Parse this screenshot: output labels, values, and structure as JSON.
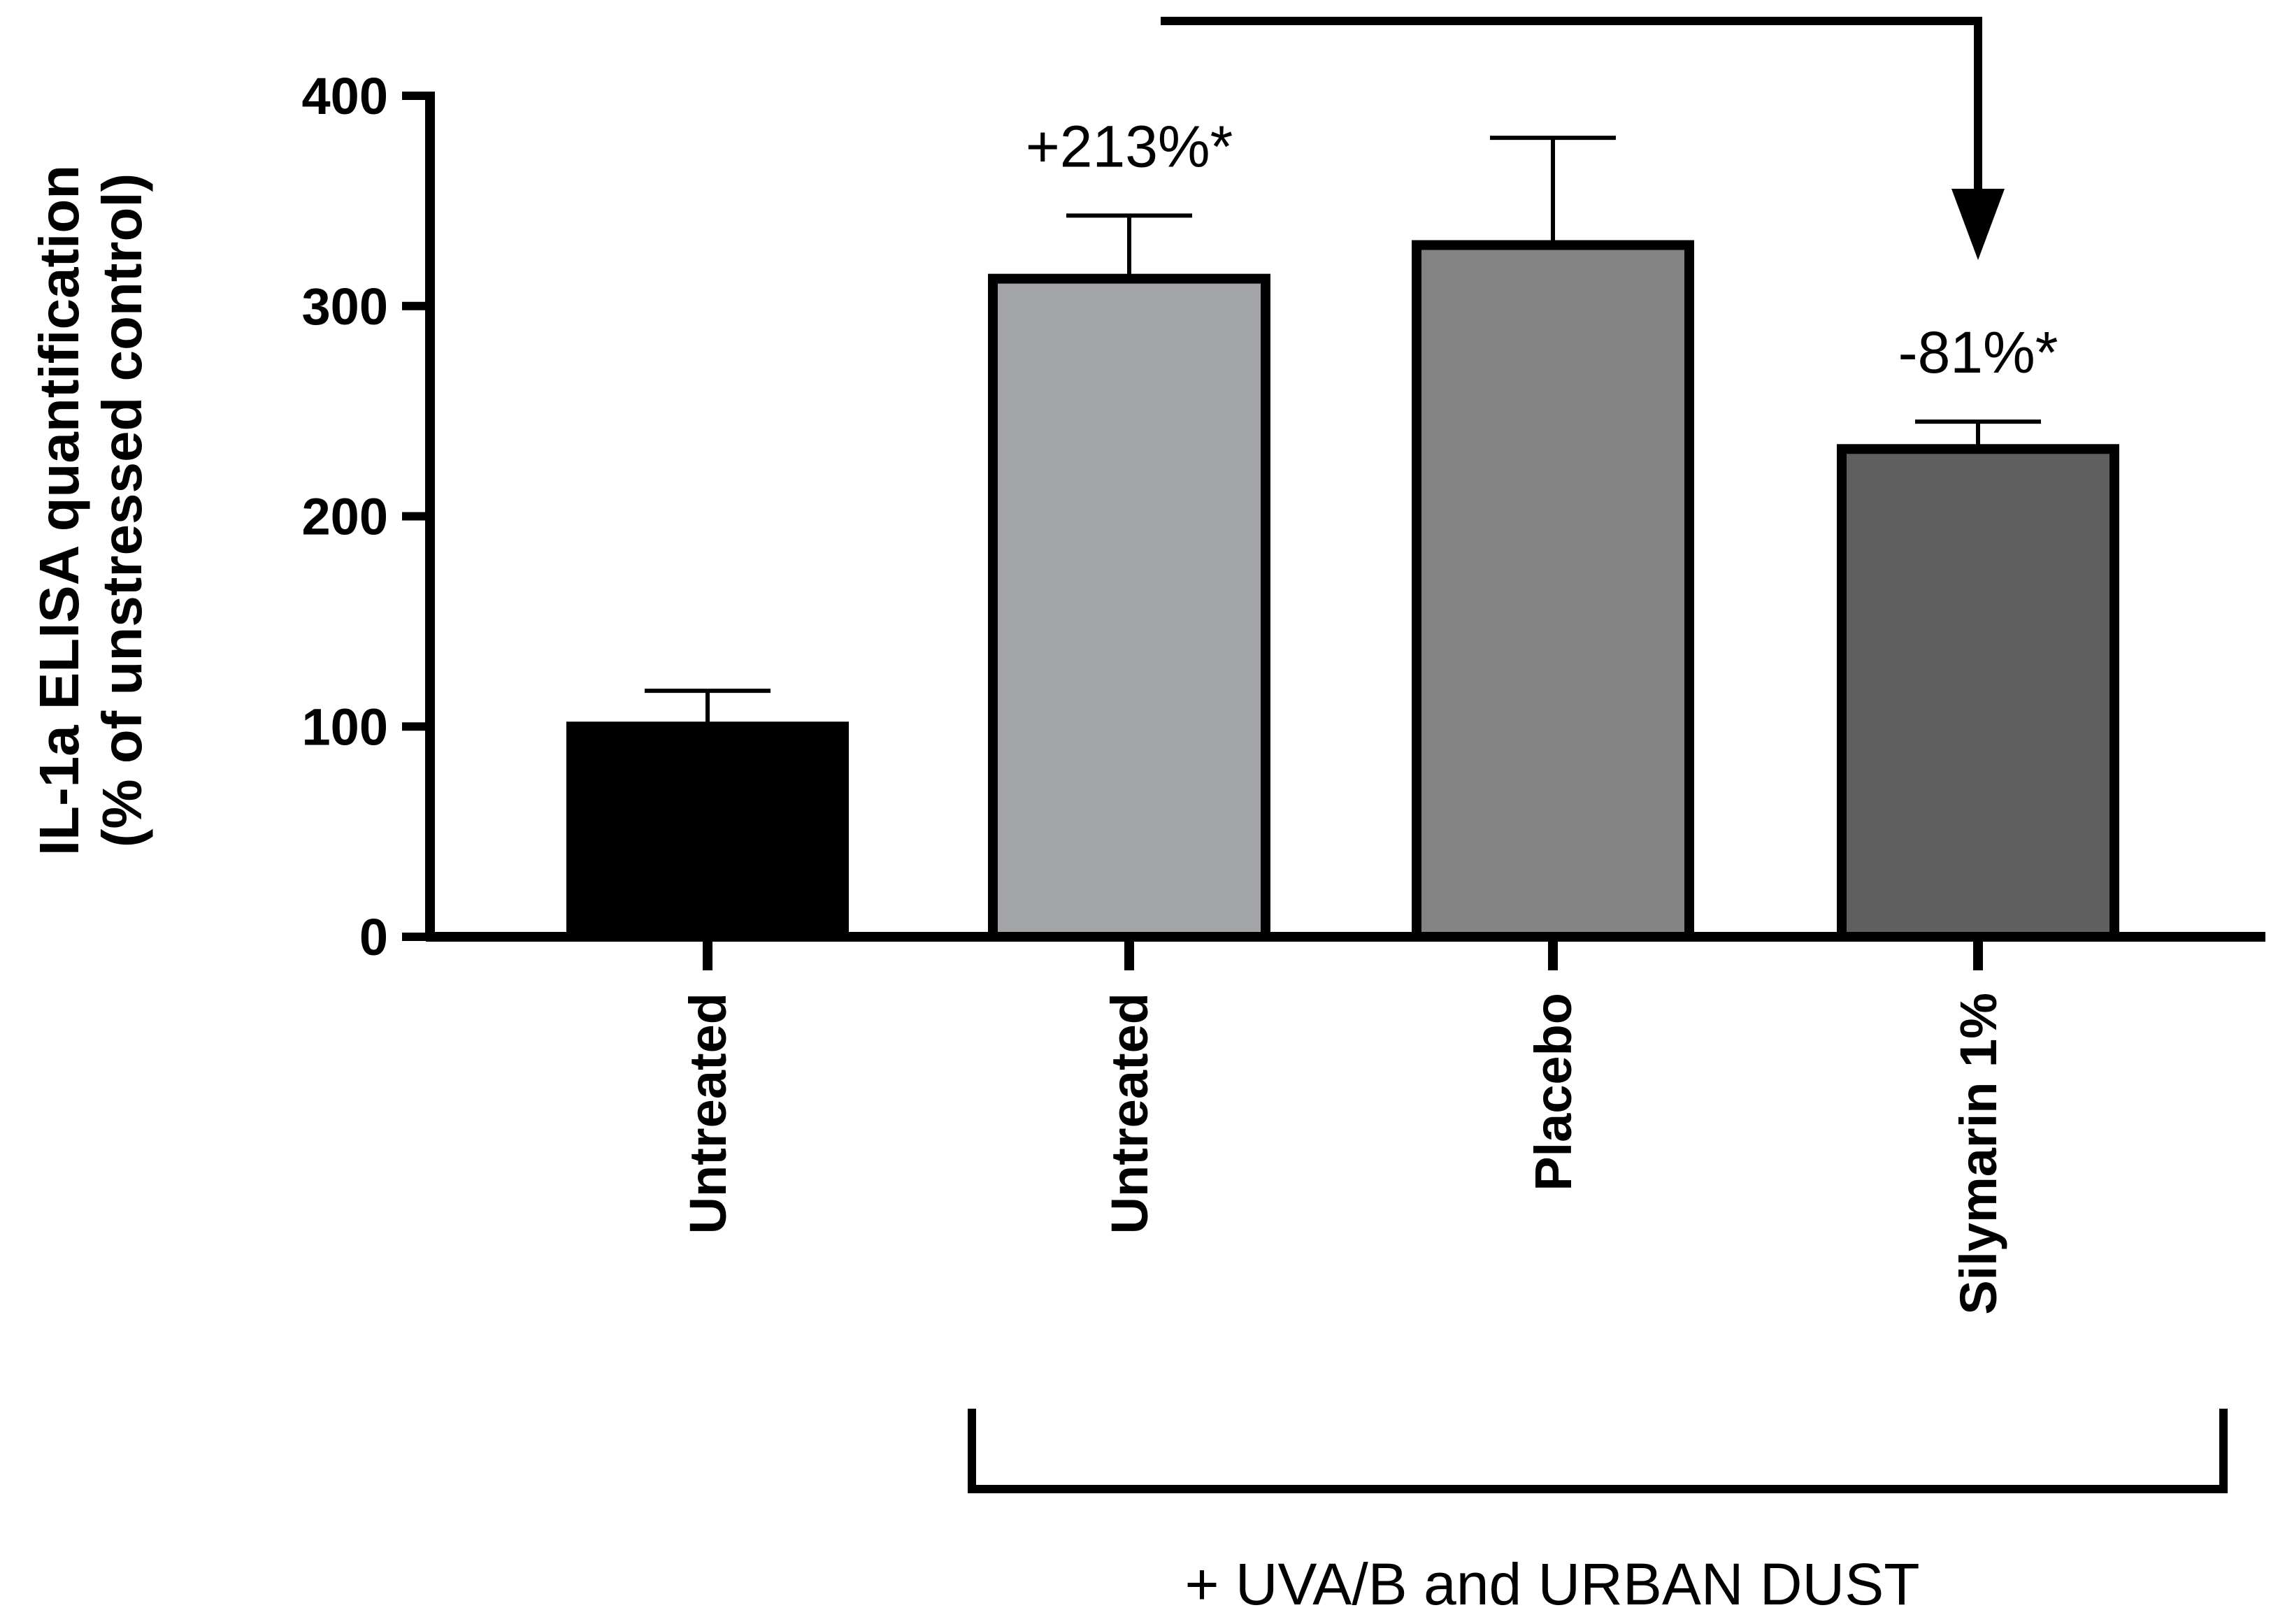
{
  "chart_data": {
    "type": "bar",
    "ylabel": "IL-1a ELISA quantification",
    "ylabel_sub": "(% of unstressed control)",
    "ylim": [
      0,
      400
    ],
    "yticks": [
      0,
      100,
      200,
      300,
      400
    ],
    "categories": [
      "Untreated",
      "Untreated",
      "Placebo",
      "Silymarin 1%"
    ],
    "values": [
      100,
      313,
      329,
      232
    ],
    "errors": [
      17,
      30,
      51,
      13
    ],
    "colors": [
      "#000000",
      "#a3a4a7",
      "#838383",
      "#5f5f5f"
    ],
    "annotations": [
      {
        "category_index": 1,
        "text": "+213%*"
      },
      {
        "category_index": 3,
        "text": "-81%*"
      }
    ],
    "comparison_arrow": {
      "from_index": 1,
      "to_index": 3
    },
    "group_label": "+ UVA/B and URBAN DUST",
    "group_indices": [
      1,
      2,
      3
    ],
    "grid": false,
    "legend": "none"
  }
}
